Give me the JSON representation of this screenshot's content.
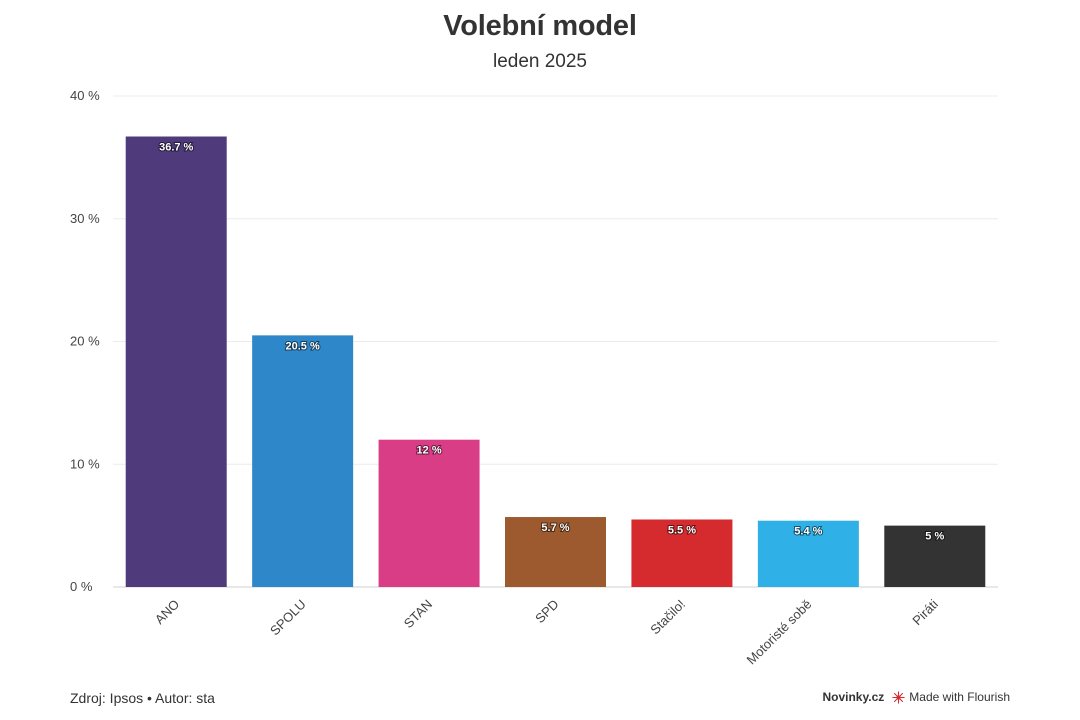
{
  "header": {
    "title": "Volební model",
    "subtitle": "leden 2025"
  },
  "footer": {
    "source": "Zdroj: Ipsos • Autor: sta",
    "brand": "Novinky.cz",
    "made_with": "Made with Flourish"
  },
  "chart_data": {
    "type": "bar",
    "title": "Volební model",
    "subtitle": "leden 2025",
    "xlabel": "",
    "ylabel": "",
    "ylim": [
      0,
      40
    ],
    "yticks": [
      0,
      10,
      20,
      30,
      40
    ],
    "ytick_labels": [
      "0 %",
      "10 %",
      "20 %",
      "30 %",
      "40 %"
    ],
    "grid": true,
    "categories": [
      "ANO",
      "SPOLU",
      "STAN",
      "SPD",
      "Stačilo!",
      "Motoristé sobě",
      "Piráti"
    ],
    "values": [
      36.7,
      20.5,
      12,
      5.7,
      5.5,
      5.4,
      5
    ],
    "value_labels": [
      "36.7 %",
      "20.5 %",
      "12 %",
      "5.7 %",
      "5.5 %",
      "5.4 %",
      "5 %"
    ],
    "colors": [
      "#4f3b7c",
      "#2e87c8",
      "#d93d86",
      "#9c5a2e",
      "#d52b2f",
      "#2fb0e6",
      "#333333"
    ]
  }
}
